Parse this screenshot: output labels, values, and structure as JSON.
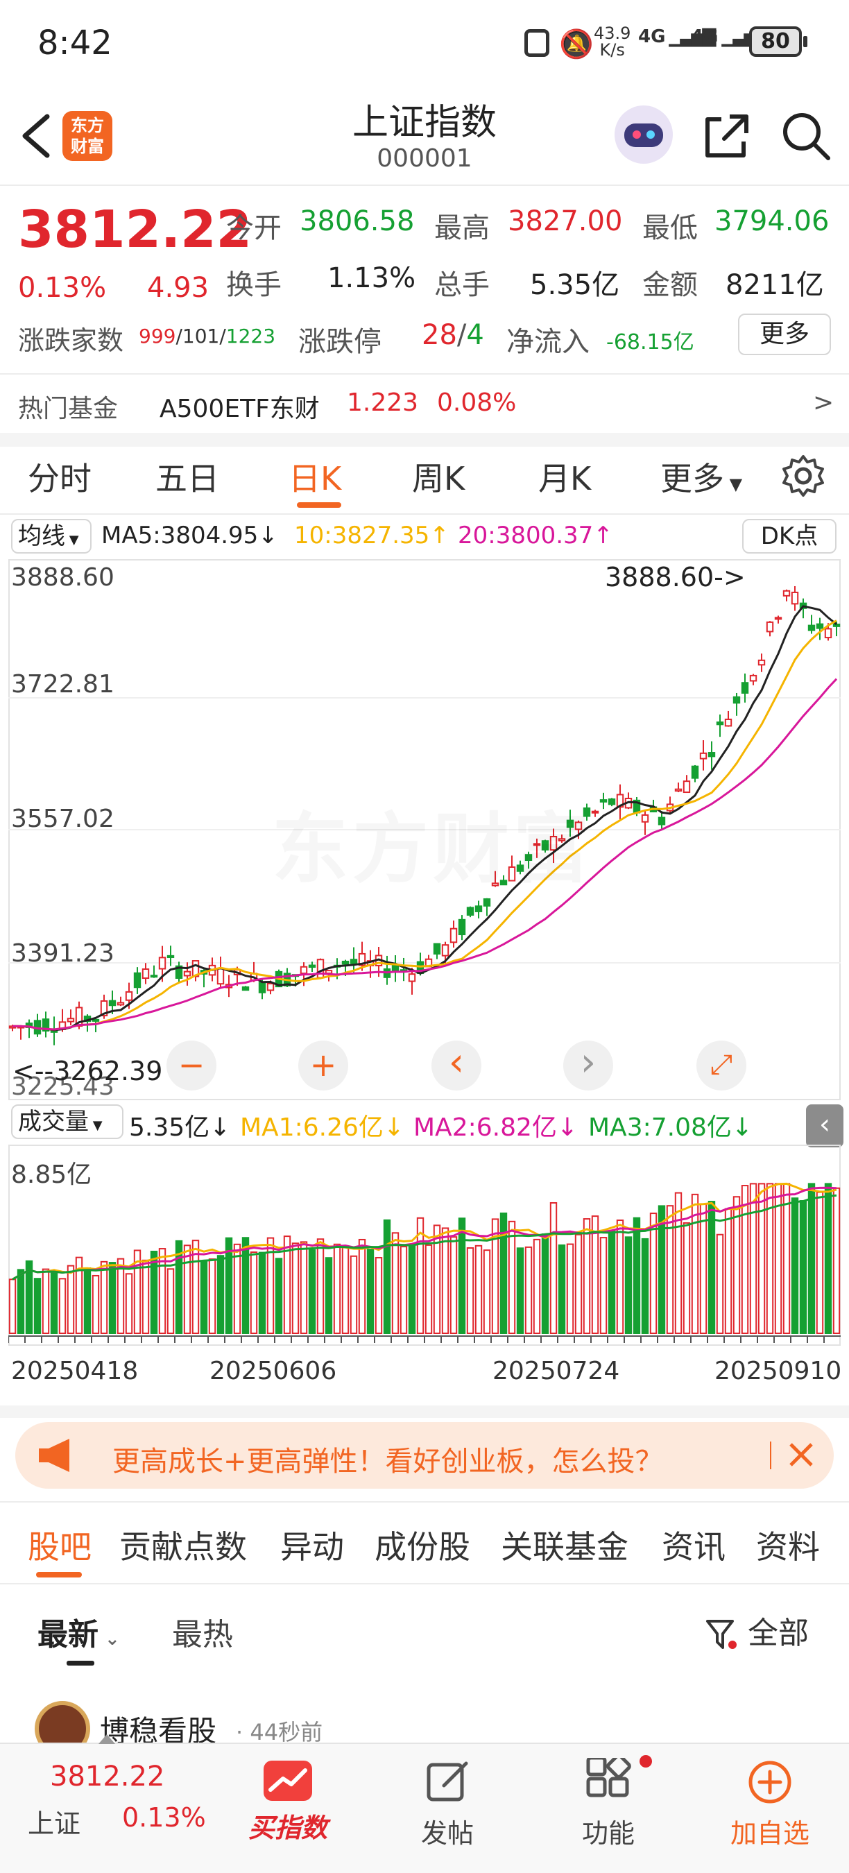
{
  "status_bar": {
    "time": "8:42",
    "speed": "43.9",
    "speed_unit": "K/s",
    "net1": "4G",
    "net2": "4G",
    "battery": "80"
  },
  "header": {
    "brand_line1": "东方",
    "brand_line2": "财富",
    "title": "上证指数",
    "code": "000001"
  },
  "quote": {
    "price": "3812.22",
    "change_pct": "0.13%",
    "change_val": "4.93",
    "open_label": "今开",
    "open": "3806.58",
    "high_label": "最高",
    "high": "3827.00",
    "low_label": "最低",
    "low": "3794.06",
    "turnover_label": "换手",
    "turnover": "1.13%",
    "volume_label": "总手",
    "volume": "5.35亿",
    "amount_label": "金额",
    "amount": "8211亿",
    "breadth_label": "涨跌家数",
    "breadth_up": "999",
    "breadth_flat": "101",
    "breadth_down": "1223",
    "sep1": "/",
    "sep2": "/",
    "limit_label": "涨跌停",
    "limit_up": "28",
    "limit_sep": "/",
    "limit_down": "4",
    "netflow_label": "净流入",
    "netflow": "-68.15亿",
    "more_label": "更多"
  },
  "fund": {
    "label": "热门基金",
    "name": "A500ETF东财",
    "price": "1.223",
    "pct": "0.08%",
    "arrow": ">"
  },
  "period_tabs": [
    "分时",
    "五日",
    "日K",
    "周K",
    "月K",
    "更多"
  ],
  "active_tab_index": 2,
  "ma_bar": {
    "selector": "均线",
    "ma5": "MA5:3804.95↓",
    "ma10": "10:3827.35↑",
    "ma20": "20:3800.37↑",
    "dk": "DK点"
  },
  "chart_data": {
    "type": "candlestick",
    "y_ticks": [
      "3888.60",
      "3722.81",
      "3557.02",
      "3391.23",
      "3225.43"
    ],
    "ylim": [
      3225.43,
      3888.6
    ],
    "max_annotation": "3888.60->",
    "min_annotation": "<--3262.39",
    "watermark": "东方财富",
    "x_ticks": [
      "20250418",
      "20250606",
      "20250724",
      "20250910"
    ]
  },
  "controls": [
    "−",
    "+",
    "‹",
    "›",
    "⤢"
  ],
  "volume_bar": {
    "selector": "成交量",
    "vol": "5.35亿↓",
    "ma1": "MA1:6.26亿↓",
    "ma2": "MA2:6.82亿↓",
    "ma3": "MA3:7.08亿↓",
    "max_label": "8.85亿"
  },
  "banner": {
    "text": "更高成长+更高弹性！看好创业板，怎么投？"
  },
  "content_tabs": [
    "股吧",
    "贡献点数",
    "异动",
    "成份股",
    "关联基金",
    "资讯",
    "资料"
  ],
  "sort": {
    "latest": "最新",
    "hot": "最热",
    "filter": "全部"
  },
  "post": {
    "author": "博稳看股",
    "time": "· 44秒前"
  },
  "bottom_bar": {
    "price": "3812.22",
    "name": "上证",
    "pct": "0.13%",
    "buy_label": "买指数",
    "post_label": "发帖",
    "func_label": "功能",
    "add_label": "加自选"
  }
}
